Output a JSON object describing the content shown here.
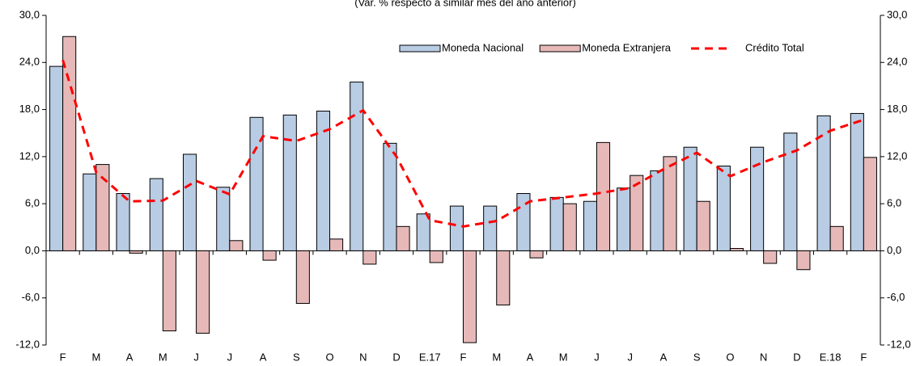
{
  "chart_data": {
    "type": "bar-line",
    "subtitle": "(Var. % respecto a similar mes del año anterior)",
    "categories": [
      "F",
      "M",
      "A",
      "M",
      "J",
      "J",
      "A",
      "S",
      "O",
      "N",
      "D",
      "E.17",
      "F",
      "M",
      "A",
      "M",
      "J",
      "J",
      "A",
      "S",
      "O",
      "N",
      "D",
      "E.18",
      "F"
    ],
    "series": [
      {
        "name": "Moneda Nacional",
        "type": "bar",
        "color": "#b8cce4",
        "values": [
          23.5,
          9.8,
          7.3,
          9.2,
          12.3,
          8.1,
          17.0,
          17.3,
          17.8,
          21.5,
          13.7,
          4.7,
          5.7,
          5.7,
          7.3,
          6.8,
          6.3,
          8.0,
          10.2,
          13.2,
          10.8,
          13.2,
          15.0,
          17.2,
          17.5
        ]
      },
      {
        "name": "Moneda Extranjera",
        "type": "bar",
        "color": "#e6b9b8",
        "values": [
          27.3,
          11.0,
          -0.3,
          -10.2,
          -10.5,
          1.3,
          -1.2,
          -6.7,
          1.5,
          -1.7,
          3.1,
          -1.5,
          -11.7,
          -6.9,
          -0.9,
          6.0,
          13.8,
          9.6,
          12.0,
          6.3,
          0.3,
          -1.6,
          -2.4,
          3.1,
          11.9
        ]
      },
      {
        "name": "Crédito Total",
        "type": "line",
        "color": "#ff0000",
        "values": [
          24.3,
          10.0,
          6.3,
          6.4,
          8.9,
          7.2,
          14.6,
          14.0,
          15.5,
          17.9,
          12.0,
          3.9,
          3.1,
          3.8,
          6.3,
          6.8,
          7.3,
          8.0,
          10.4,
          12.5,
          9.5,
          11.3,
          12.8,
          15.3,
          16.7
        ]
      }
    ],
    "ylim": [
      -12,
      30
    ],
    "yticks": [
      {
        "value": -12,
        "label": "-12,0"
      },
      {
        "value": -6,
        "label": "-6,0"
      },
      {
        "value": 0,
        "label": "0,0"
      },
      {
        "value": 6,
        "label": "6,0"
      },
      {
        "value": 12,
        "label": "12,0"
      },
      {
        "value": 18,
        "label": "18,0"
      },
      {
        "value": 24,
        "label": "24,0"
      },
      {
        "value": 30,
        "label": "30,0"
      }
    ],
    "y2lim": [
      -12,
      30
    ],
    "y2ticks": [
      {
        "value": -12,
        "label": "-12,0"
      },
      {
        "value": -6,
        "label": "-6,0"
      },
      {
        "value": 0,
        "label": "0,0"
      },
      {
        "value": 6,
        "label": "6,0"
      },
      {
        "value": 12,
        "label": "12,0"
      },
      {
        "value": 18,
        "label": "18,0"
      },
      {
        "value": 24,
        "label": "24,0"
      },
      {
        "value": 30,
        "label": "30,0"
      }
    ],
    "legend": "top-right"
  }
}
